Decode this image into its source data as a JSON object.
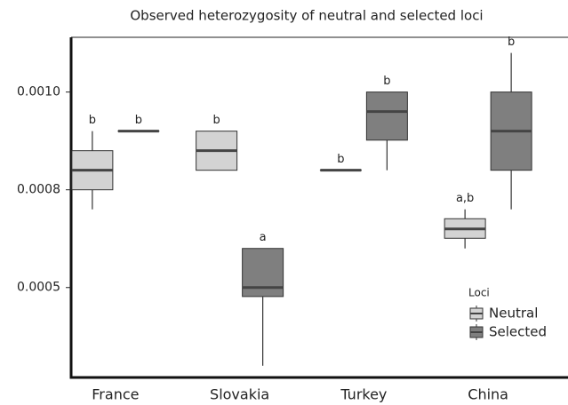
{
  "chart_data": {
    "type": "box",
    "title": "Observed heterozygosity of neutral and selected loci",
    "categories": [
      "France",
      "Slovakia",
      "Turkey",
      "China"
    ],
    "ylim": [
      0.00027,
      0.00114
    ],
    "yticks": [
      0.0005,
      {
        "value": 0.00075,
        "label": "0.0008"
      },
      {
        "value": 0.001,
        "label": "0.0010"
      }
    ],
    "legend_title": "Loci",
    "legend_position": "lower right",
    "series": [
      {
        "name": "Neutral",
        "color": "#d3d3d3",
        "min": [
          0.0007,
          0.0008,
          0.0008,
          0.0006
        ],
        "q1": [
          0.00075,
          0.0008,
          0.0008,
          0.000626
        ],
        "median": [
          0.0008,
          0.00085,
          0.0008,
          0.00065
        ],
        "q3": [
          0.00085,
          0.0009,
          0.0008,
          0.000676
        ],
        "max": [
          0.0009,
          0.0009,
          0.0008,
          0.0007
        ],
        "letters": [
          "b",
          "b",
          "b",
          "a,b"
        ]
      },
      {
        "name": "Selected",
        "color": "#7f7f7f",
        "min": [
          0.0009,
          0.0003,
          0.0008,
          0.0007
        ],
        "q1": [
          0.0009,
          0.000477,
          0.000877,
          0.0008
        ],
        "median": [
          0.0009,
          0.0005,
          0.00095,
          0.0009
        ],
        "q3": [
          0.0009,
          0.0006,
          0.001,
          0.001
        ],
        "max": [
          0.0009,
          0.0006,
          0.001,
          0.0011
        ],
        "letters": [
          "b",
          "a",
          "b",
          "b"
        ]
      }
    ]
  }
}
